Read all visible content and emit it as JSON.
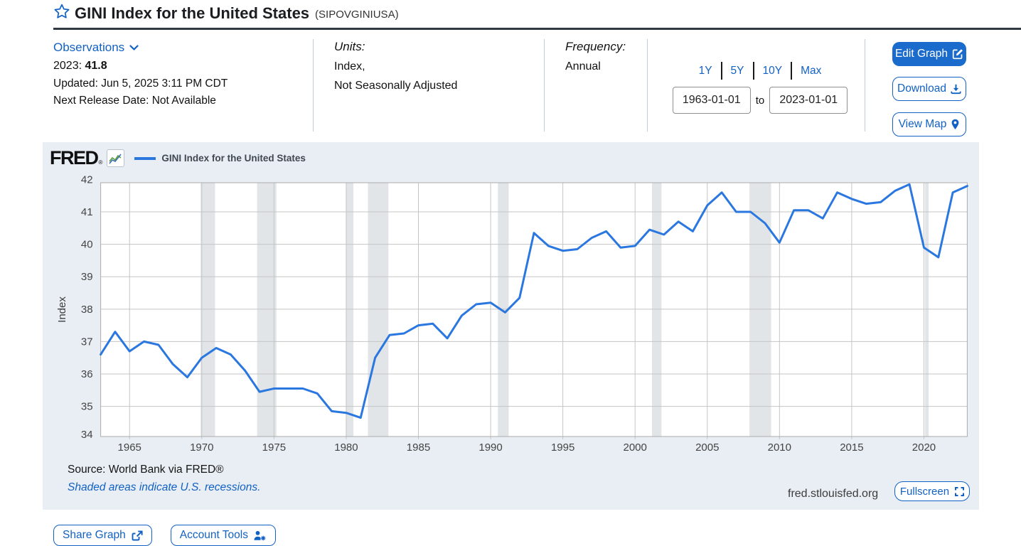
{
  "header": {
    "title": "GINI Index for the United States",
    "series_code": "(SIPOVGINIUSA)"
  },
  "meta": {
    "observations_label": "Observations",
    "latest_period": "2023:",
    "latest_value": "41.8",
    "updated": "Updated: Jun 5, 2025 3:11 PM CDT",
    "next_release": "Next Release Date: Not Available",
    "units_label": "Units:",
    "units_value": "Index,",
    "units_adjustment": "Not Seasonally Adjusted",
    "frequency_label": "Frequency:",
    "frequency_value": "Annual",
    "range_links": {
      "y1": "1Y",
      "y5": "5Y",
      "y10": "10Y",
      "max": "Max"
    },
    "date_from": "1963-01-01",
    "date_to_label": "to",
    "date_to": "2023-01-01",
    "edit_graph": "Edit Graph",
    "download": "Download",
    "view_map": "View Map"
  },
  "chart": {
    "logo": "FRED",
    "legend": "GINI Index for the United States",
    "source_line": "Source: World Bank via FRED®",
    "recession_note": "Shaded areas indicate U.S. recessions.",
    "watermark": "fred.stlouisfed.org",
    "fullscreen_label": "Fullscreen"
  },
  "footer": {
    "share_graph": "Share Graph",
    "account_tools": "Account Tools"
  },
  "colors": {
    "link_blue": "#1261c4",
    "button_blue": "#1a6bcc",
    "line_blue": "#2b77e0",
    "card_bg": "#e8eef4",
    "recession_gray": "#e2e5e8",
    "gridline_gray": "#c5c5c5",
    "plot_border": "#ababab"
  },
  "chart_data": {
    "type": "line",
    "title": "GINI Index for the United States",
    "ylabel": "Index",
    "x_start_year": 1963,
    "x_end_year": 2023,
    "ylim": [
      34.07,
      41.9
    ],
    "y_ticks": [
      34,
      35,
      36,
      37,
      38,
      39,
      40,
      41,
      42
    ],
    "x_ticks": [
      1965,
      1970,
      1975,
      1980,
      1985,
      1990,
      1995,
      2000,
      2005,
      2010,
      2015,
      2020
    ],
    "years": [
      1963,
      1964,
      1965,
      1966,
      1967,
      1968,
      1969,
      1970,
      1971,
      1972,
      1973,
      1974,
      1975,
      1976,
      1977,
      1978,
      1979,
      1980,
      1981,
      1982,
      1983,
      1984,
      1985,
      1986,
      1987,
      1988,
      1989,
      1990,
      1991,
      1992,
      1993,
      1994,
      1995,
      1996,
      1997,
      1998,
      1999,
      2000,
      2001,
      2002,
      2003,
      2004,
      2005,
      2006,
      2007,
      2008,
      2009,
      2010,
      2011,
      2012,
      2013,
      2014,
      2015,
      2016,
      2017,
      2018,
      2019,
      2020,
      2021,
      2022,
      2023
    ],
    "values": [
      36.6,
      37.3,
      36.7,
      37.0,
      36.9,
      36.3,
      35.9,
      36.5,
      36.8,
      36.6,
      36.1,
      35.45,
      35.55,
      35.55,
      35.55,
      35.4,
      34.85,
      34.8,
      34.65,
      36.5,
      37.2,
      37.25,
      37.5,
      37.55,
      37.1,
      37.8,
      38.15,
      38.2,
      37.9,
      38.35,
      40.35,
      39.95,
      39.8,
      39.85,
      40.2,
      40.4,
      39.9,
      39.95,
      40.45,
      40.3,
      40.7,
      40.4,
      41.2,
      41.6,
      41.0,
      41.0,
      40.65,
      40.05,
      41.05,
      41.05,
      40.8,
      41.6,
      41.4,
      41.25,
      41.3,
      41.65,
      41.85,
      39.9,
      39.6,
      41.6,
      41.8
    ],
    "recessions": [
      [
        1969.92,
        1970.92
      ],
      [
        1973.83,
        1975.17
      ],
      [
        1980.0,
        1980.5
      ],
      [
        1981.5,
        1982.92
      ],
      [
        1990.5,
        1991.25
      ],
      [
        2001.17,
        2001.83
      ],
      [
        2007.92,
        2009.42
      ],
      [
        2020.08,
        2020.33
      ]
    ],
    "legend_position": "top-left",
    "grid": true
  }
}
